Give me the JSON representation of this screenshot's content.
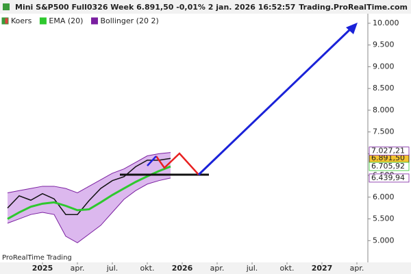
{
  "header": {
    "title": "Mini S&P500 Full0326 Week 6.891,50 -0,01% 2 jan. 2026 16:52:57",
    "site": "Trading.ProRealTime.com",
    "watermark": "ProRealTime Trading"
  },
  "chart_data": {
    "type": "line",
    "categories": [
      null,
      null,
      null,
      "2025",
      null,
      null,
      "apr.",
      null,
      null,
      "jul.",
      null,
      null,
      "okt.",
      null,
      null,
      "2026",
      null,
      null,
      "apr.",
      null,
      null,
      "jul.",
      null,
      null,
      "okt.",
      null,
      null,
      "2027",
      null,
      null,
      "apr."
    ],
    "series": [
      {
        "name": "Koers",
        "color": "#111111",
        "values": [
          5750,
          6030,
          5930,
          6080,
          5960,
          5600,
          5600,
          5920,
          6200,
          6380,
          6470,
          6700,
          6850,
          6850,
          6891.5,
          null,
          null,
          null,
          null,
          null,
          null,
          null,
          null,
          null,
          null,
          null,
          null,
          null,
          null,
          null,
          null
        ],
        "value_labels": [
          null,
          null,
          null,
          null,
          null,
          null,
          null,
          null,
          null,
          null,
          null,
          null,
          null,
          null,
          "6.891,50",
          null,
          null,
          null,
          null,
          null,
          null,
          null,
          null,
          null,
          null,
          null,
          null,
          null,
          null,
          null,
          null
        ]
      },
      {
        "name": "EMA (20)",
        "color": "#2ec82e",
        "values": [
          5500,
          5650,
          5780,
          5850,
          5880,
          5800,
          5700,
          5720,
          5880,
          6050,
          6200,
          6350,
          6480,
          6600,
          6705.92,
          null,
          null,
          null,
          null,
          null,
          null,
          null,
          null,
          null,
          null,
          null,
          null,
          null,
          null,
          null,
          null
        ],
        "value_labels": [
          null,
          null,
          null,
          null,
          null,
          null,
          null,
          null,
          null,
          null,
          null,
          null,
          null,
          null,
          "6.705,92",
          null,
          null,
          null,
          null,
          null,
          null,
          null,
          null,
          null,
          null,
          null,
          null,
          null,
          null,
          null,
          null
        ]
      },
      {
        "name": "Bollinger (20 2)",
        "color": "#7a1fa0",
        "values": [
          6100,
          6150,
          6200,
          6250,
          6250,
          6200,
          6100,
          6250,
          6400,
          6550,
          6650,
          6800,
          6950,
          7000,
          7027.21,
          null,
          null,
          null,
          null,
          null,
          null,
          null,
          null,
          null,
          null,
          null,
          null,
          null,
          null,
          null,
          null
        ],
        "value_labels": [
          null,
          null,
          null,
          null,
          null,
          null,
          null,
          null,
          null,
          null,
          null,
          null,
          null,
          null,
          "7.027,21",
          null,
          null,
          null,
          null,
          null,
          null,
          null,
          null,
          null,
          null,
          null,
          null,
          null,
          null,
          null,
          null
        ]
      },
      {
        "color": "#7a1fa0",
        "values": [
          5400,
          5500,
          5600,
          5650,
          5600,
          5100,
          4950,
          5150,
          5350,
          5650,
          5950,
          6150,
          6300,
          6380,
          6439.94,
          null,
          null,
          null,
          null,
          null,
          null,
          null,
          null,
          null,
          null,
          null,
          null,
          null,
          null,
          null,
          null
        ],
        "value_labels": [
          null,
          null,
          null,
          null,
          null,
          null,
          null,
          null,
          null,
          null,
          null,
          null,
          null,
          null,
          "6.439,94",
          null,
          null,
          null,
          null,
          null,
          null,
          null,
          null,
          null,
          null,
          null,
          null,
          null,
          null,
          null,
          null
        ]
      }
    ],
    "band_fill": "#dcb8ee",
    "ylim": [
      4500,
      10220
    ],
    "yticks": [
      {
        "value": 5000,
        "label": "5.000"
      },
      {
        "value": 5500,
        "label": "5.500"
      },
      {
        "value": 6000,
        "label": "6.000"
      },
      {
        "value": 6500,
        "label": "6.500"
      },
      {
        "value": 7000,
        "label": "7.000"
      },
      {
        "value": 7500,
        "label": "7.500"
      },
      {
        "value": 8000,
        "label": "8.000"
      },
      {
        "value": 8500,
        "label": "8.500"
      },
      {
        "value": 9000,
        "label": "9.000"
      },
      {
        "value": 9500,
        "label": "9.500"
      },
      {
        "value": 10000,
        "label": "10.000"
      }
    ],
    "grid": false
  }
}
